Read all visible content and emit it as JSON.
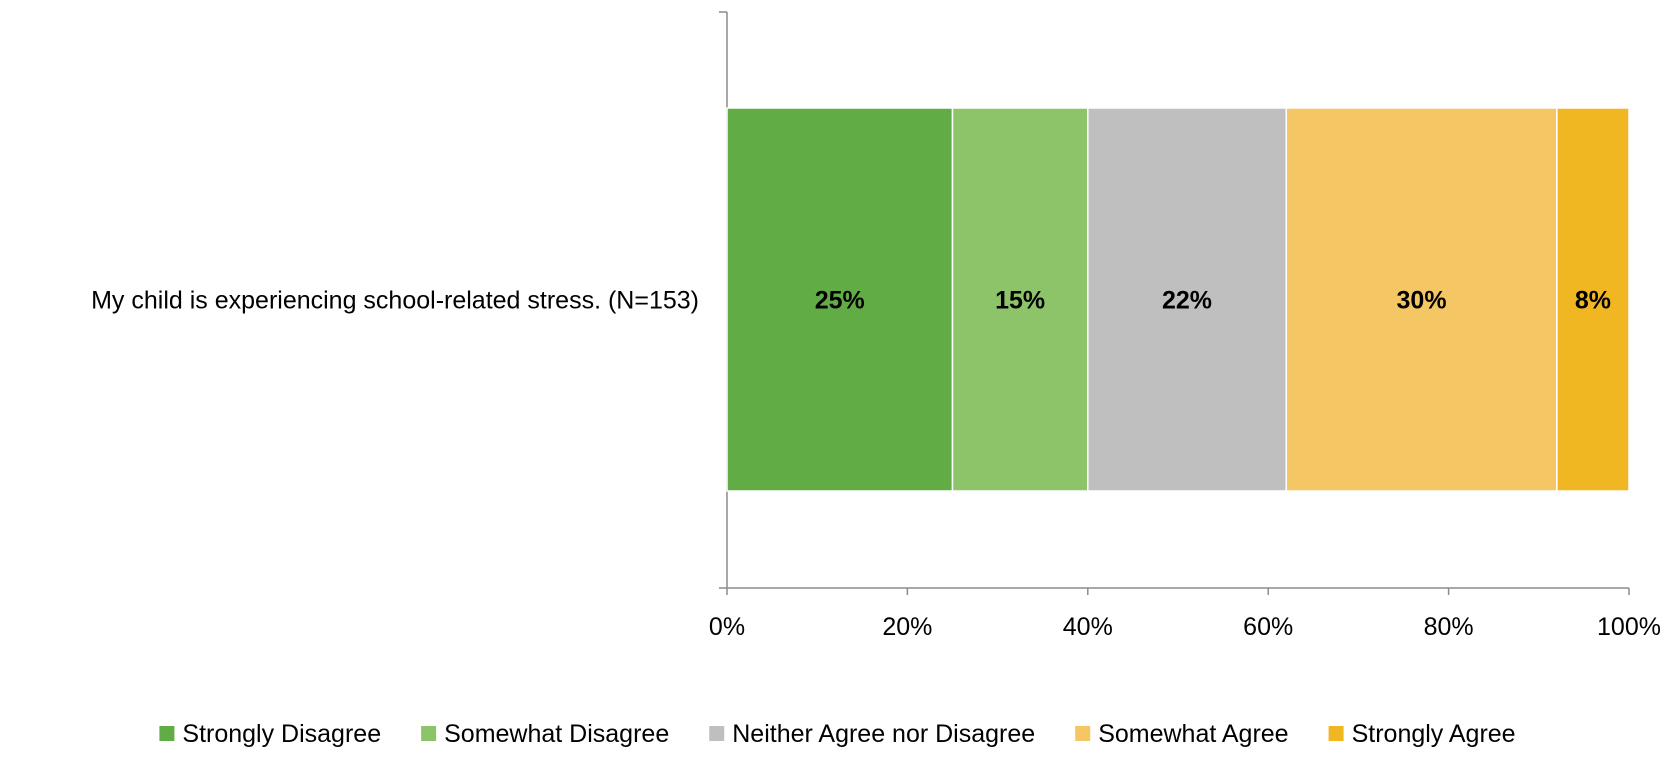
{
  "chart_data": {
    "type": "bar",
    "orientation": "horizontal",
    "stacked": true,
    "percent_stacked": true,
    "categories": [
      "My child is experiencing school-related stress. (N=153)"
    ],
    "series": [
      {
        "name": "Strongly Disagree",
        "values": [
          25
        ],
        "label": "25%",
        "color": "#62AC46"
      },
      {
        "name": "Somewhat Disagree",
        "values": [
          15
        ],
        "label": "15%",
        "color": "#8DC46A"
      },
      {
        "name": "Neither Agree nor Disagree",
        "values": [
          22
        ],
        "label": "22%",
        "color": "#BFBFBF"
      },
      {
        "name": "Somewhat Agree",
        "values": [
          30
        ],
        "label": "30%",
        "color": "#F5C664"
      },
      {
        "name": "Strongly Agree",
        "values": [
          8
        ],
        "label": "8%",
        "color": "#F1B722"
      }
    ],
    "xlim": [
      0,
      100
    ],
    "xticks": [
      "0%",
      "20%",
      "40%",
      "60%",
      "80%",
      "100%"
    ],
    "grid": false,
    "legend_position": "bottom"
  }
}
